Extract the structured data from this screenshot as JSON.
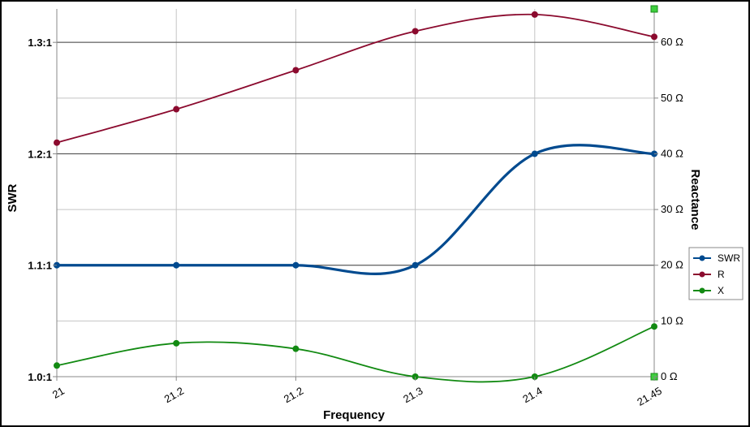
{
  "chart_data": {
    "type": "line",
    "title": "",
    "xlabel": "Frequency",
    "ylabel_left": "SWR",
    "ylabel_right": "Reactance",
    "categories": [
      "21",
      "21.2",
      "21.2",
      "21.3",
      "21.4",
      "21.45"
    ],
    "left_axis": {
      "min": 1.0,
      "max": 1.33,
      "ticks": [
        {
          "value": 1.0,
          "label": "1.0:1"
        },
        {
          "value": 1.1,
          "label": "1.1:1"
        },
        {
          "value": 1.2,
          "label": "1.2:1"
        },
        {
          "value": 1.3,
          "label": "1.3:1"
        }
      ]
    },
    "right_axis": {
      "min": 0,
      "max": 66,
      "ticks": [
        {
          "value": 0,
          "label": "0 Ω"
        },
        {
          "value": 10,
          "label": "10 Ω"
        },
        {
          "value": 20,
          "label": "20 Ω"
        },
        {
          "value": 30,
          "label": "30 Ω"
        },
        {
          "value": 40,
          "label": "40 Ω"
        },
        {
          "value": 50,
          "label": "50 Ω"
        },
        {
          "value": 60,
          "label": "60 Ω"
        }
      ]
    },
    "series": [
      {
        "name": "SWR",
        "axis": "left",
        "color": "#004a8f",
        "width": 3.2,
        "values": [
          1.1,
          1.1,
          1.1,
          1.1,
          1.2,
          1.2
        ]
      },
      {
        "name": "R",
        "axis": "right",
        "color": "#8b0a2e",
        "width": 1.8,
        "values": [
          42,
          48,
          55,
          62,
          65,
          61
        ]
      },
      {
        "name": "X",
        "axis": "right",
        "color": "#128a12",
        "width": 1.8,
        "values": [
          2,
          6,
          5,
          0,
          0,
          9
        ]
      }
    ],
    "grid": true,
    "legend_position": "right"
  }
}
